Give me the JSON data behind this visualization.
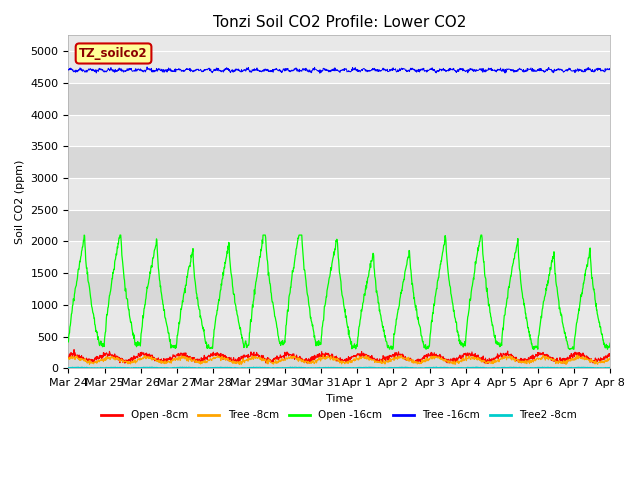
{
  "title": "Tonzi Soil CO2 Profile: Lower CO2",
  "xlabel": "Time",
  "ylabel": "Soil CO2 (ppm)",
  "watermark": "TZ_soilco2",
  "ylim": [
    0,
    5250
  ],
  "yticks": [
    0,
    500,
    1000,
    1500,
    2000,
    2500,
    3000,
    3500,
    4000,
    4500,
    5000
  ],
  "xtick_labels": [
    "Mar 24",
    "Mar 25",
    "Mar 26",
    "Mar 27",
    "Mar 28",
    "Mar 29",
    "Mar 30",
    "Mar 31",
    "Apr 1",
    "Apr 2",
    "Apr 3",
    "Apr 4",
    "Apr 5",
    "Apr 6",
    "Apr 7",
    "Apr 8"
  ],
  "colors": {
    "open_8cm": "#ff0000",
    "tree_8cm": "#ffa500",
    "open_16cm": "#00ff00",
    "tree_16cm": "#0000ff",
    "tree2_8cm": "#00cccc"
  },
  "legend_labels": [
    "Open -8cm",
    "Tree -8cm",
    "Open -16cm",
    "Tree -16cm",
    "Tree2 -8cm"
  ],
  "bg_color": "#e8e8e8",
  "grid_color": "#ffffff",
  "title_fontsize": 11,
  "axis_label_fontsize": 8,
  "tick_fontsize": 8
}
